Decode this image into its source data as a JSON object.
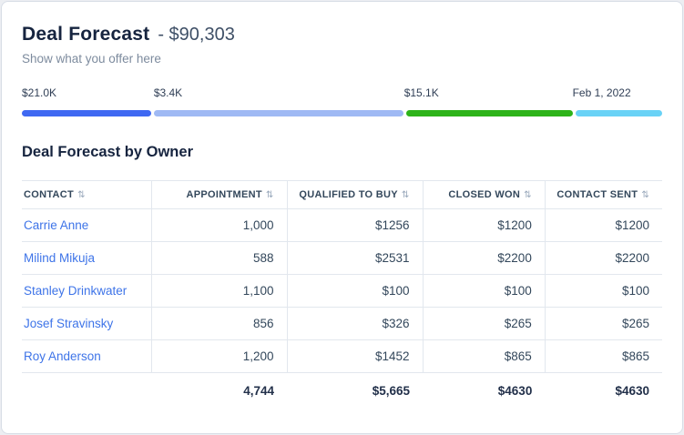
{
  "header": {
    "title": "Deal Forecast",
    "amount": "- $90,303",
    "subtitle": "Show what you offer here"
  },
  "progress": {
    "segments": [
      {
        "label": "$21.0K",
        "color": "#3f68f2",
        "width_pct": 20.2,
        "offset_pct": 0
      },
      {
        "label": "$3.4K",
        "color": "#9fb9f4",
        "width_pct": 39.0,
        "offset_pct": 20.6
      },
      {
        "label": "$15.1K",
        "color": "#2db319",
        "width_pct": 26.0,
        "offset_pct": 59.7
      },
      {
        "label": "Feb 1, 2022",
        "color": "#69d2f6",
        "width_pct": 13.5,
        "offset_pct": 86.0
      }
    ]
  },
  "section": {
    "title": "Deal Forecast by Owner"
  },
  "icons": {
    "sort": "⇅"
  },
  "table": {
    "headers": [
      "Contact",
      "Appointment",
      "Qualified to Buy",
      "Closed Won",
      "Contact Sent"
    ],
    "rows": [
      {
        "contact": "Carrie Anne",
        "appointment": "1,000",
        "qualified": "$1256",
        "closed_won": "$1200",
        "contact_sent": "$1200"
      },
      {
        "contact": "Milind Mikuja",
        "appointment": "588",
        "qualified": "$2531",
        "closed_won": "$2200",
        "contact_sent": "$2200"
      },
      {
        "contact": "Stanley Drinkwater",
        "appointment": "1,100",
        "qualified": "$100",
        "closed_won": "$100",
        "contact_sent": "$100"
      },
      {
        "contact": "Josef Stravinsky",
        "appointment": "856",
        "qualified": "$326",
        "closed_won": "$265",
        "contact_sent": "$265"
      },
      {
        "contact": "Roy Anderson",
        "appointment": "1,200",
        "qualified": "$1452",
        "closed_won": "$865",
        "contact_sent": "$865"
      }
    ],
    "totals": {
      "appointment": "4,744",
      "qualified": "$5,665",
      "closed_won": "$4630",
      "contact_sent": "$4630"
    }
  }
}
